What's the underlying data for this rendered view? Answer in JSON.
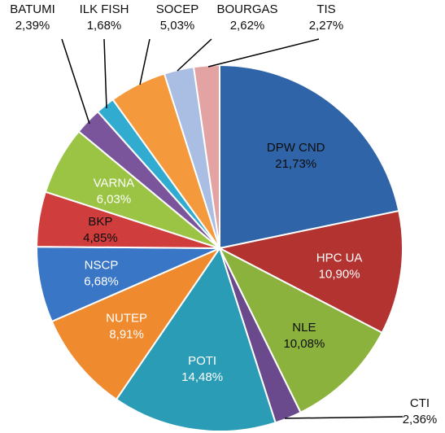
{
  "chart_data": {
    "type": "pie",
    "title": "",
    "slices": [
      {
        "label": "DPW CND",
        "value": 21.73,
        "value_label": "21,73%",
        "color": "#2f64a8",
        "label_position": "inside",
        "label_color": "#0d0d0d"
      },
      {
        "label": "HPC UA",
        "value": 10.9,
        "value_label": "10,90%",
        "color": "#b33330",
        "label_position": "inside",
        "label_color": "#ffffff"
      },
      {
        "label": "NLE",
        "value": 10.08,
        "value_label": "10,08%",
        "color": "#8cb23e",
        "label_position": "inside",
        "label_color": "#0d0d0d"
      },
      {
        "label": "CTI",
        "value": 2.36,
        "value_label": "2,36%",
        "color": "#6a4a8c",
        "label_position": "outside",
        "label_color": "#0d0d0d"
      },
      {
        "label": "POTI",
        "value": 14.48,
        "value_label": "14,48%",
        "color": "#2a9cb5",
        "label_position": "inside",
        "label_color": "#ffffff"
      },
      {
        "label": "NUTEP",
        "value": 8.91,
        "value_label": "8,91%",
        "color": "#ef8a2e",
        "label_position": "inside",
        "label_color": "#ffffff"
      },
      {
        "label": "NSCP",
        "value": 6.68,
        "value_label": "6,68%",
        "color": "#3a76c6",
        "label_position": "inside",
        "label_color": "#ffffff"
      },
      {
        "label": "BKP",
        "value": 4.85,
        "value_label": "4,85%",
        "color": "#cf3d3d",
        "label_position": "inside",
        "label_color": "#0d0d0d"
      },
      {
        "label": "VARNA",
        "value": 6.03,
        "value_label": "6,03%",
        "color": "#9bc445",
        "label_position": "inside",
        "label_color": "#ffffff"
      },
      {
        "label": "BATUMI",
        "value": 2.39,
        "value_label": "2,39%",
        "color": "#7a559c",
        "label_position": "outside",
        "label_color": "#0d0d0d"
      },
      {
        "label": "ILK FISH",
        "value": 1.68,
        "value_label": "1,68%",
        "color": "#31acd0",
        "label_position": "outside",
        "label_color": "#0d0d0d"
      },
      {
        "label": "SOCEP",
        "value": 5.03,
        "value_label": "5,03%",
        "color": "#f49a3c",
        "label_position": "outside",
        "label_color": "#0d0d0d"
      },
      {
        "label": "BOURGAS",
        "value": 2.62,
        "value_label": "2,62%",
        "color": "#a9bee2",
        "label_position": "outside",
        "label_color": "#0d0d0d"
      },
      {
        "label": "TIS",
        "value": 2.27,
        "value_label": "2,27%",
        "color": "#e4a3a3",
        "label_position": "outside",
        "label_color": "#0d0d0d"
      }
    ],
    "legend": "none"
  }
}
